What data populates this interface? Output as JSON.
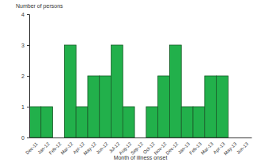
{
  "chart_data": {
    "type": "bar",
    "y_label": "Number of persons",
    "x_label": "Month of illness onset",
    "categories": [
      "Dec-11",
      "Jan-12",
      "Feb-12",
      "Mar-12",
      "Apr-12",
      "May-12",
      "Jun-12",
      "Jul-12",
      "Aug-12",
      "Sep-12",
      "Oct-12",
      "Nov-12",
      "Dec-12",
      "Jan-13",
      "Feb-13",
      "Mar-13",
      "Apr-13",
      "May-13",
      "Jun-13"
    ],
    "values": [
      1,
      1,
      0,
      3,
      1,
      2,
      2,
      3,
      1,
      0,
      1,
      2,
      3,
      1,
      1,
      2,
      2,
      0,
      0
    ],
    "color": "#22b04b",
    "ylim": [
      0,
      4
    ],
    "yticks": [
      0,
      1,
      2,
      3,
      4
    ],
    "grid": false
  }
}
